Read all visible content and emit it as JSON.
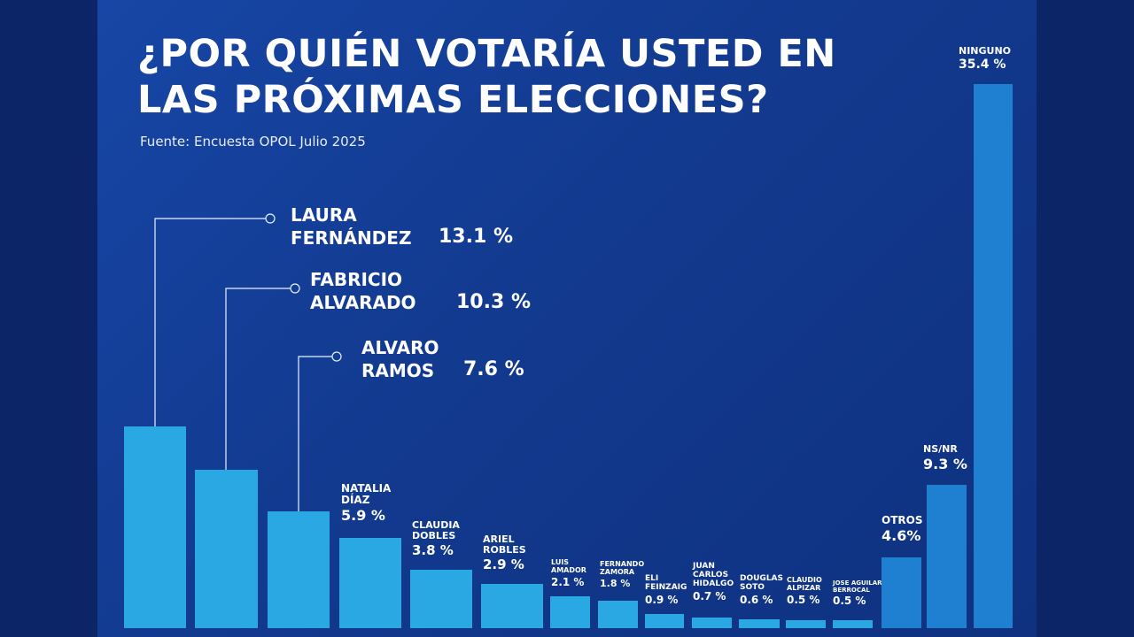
{
  "chart_data": {
    "type": "bar",
    "title": "¿POR QUIÉN VOTARÍA USTED EN LAS PRÓXIMAS ELECCIONES?",
    "subtitle": "Fuente: Encuesta OPOL Julio 2025",
    "categories": [
      "LAURA\nFERNÁNDEZ",
      "FABRICIO\nALVARADO",
      "ALVARO\nRAMOS",
      "NATALIA\nDÍAZ",
      "CLAUDIA\nDOBLES",
      "ARIEL\nROBLES",
      "LUIS\nAMADOR",
      "FERNANDO\nZAMORA",
      "ELI\nFEINZAIG",
      "JUAN\nCARLOS\nHIDALGO",
      "DOUGLAS\nSOTO",
      "CLAUDIO\nALPIZAR",
      "JOSE AGUILAR\nBERROCAL",
      "OTROS",
      "NS/NR",
      "NINGUNO"
    ],
    "values": [
      13.1,
      10.3,
      7.6,
      5.9,
      3.8,
      2.9,
      2.1,
      1.8,
      0.9,
      0.7,
      0.6,
      0.5,
      0.5,
      4.6,
      9.3,
      35.4
    ],
    "value_labels": [
      "13.1 %",
      "10.3 %",
      "7.6 %",
      "5.9 %",
      "3.8 %",
      "2.9 %",
      "2.1 %",
      "1.8 %",
      "0.9 %",
      "0.7 %",
      "0.6 %",
      "0.5 %",
      "0.5 %",
      "4.6%",
      "9.3 %",
      "35.4 %"
    ],
    "colors": [
      "#2aa8e4",
      "#2aa8e4",
      "#2aa8e4",
      "#2aa8e4",
      "#2aa8e4",
      "#2aa8e4",
      "#2aa8e4",
      "#2aa8e4",
      "#2aa8e4",
      "#2aa8e4",
      "#2aa8e4",
      "#2aa8e4",
      "#2aa8e4",
      "#1f7fd0",
      "#1f7fd0",
      "#1f7fd0"
    ]
  }
}
